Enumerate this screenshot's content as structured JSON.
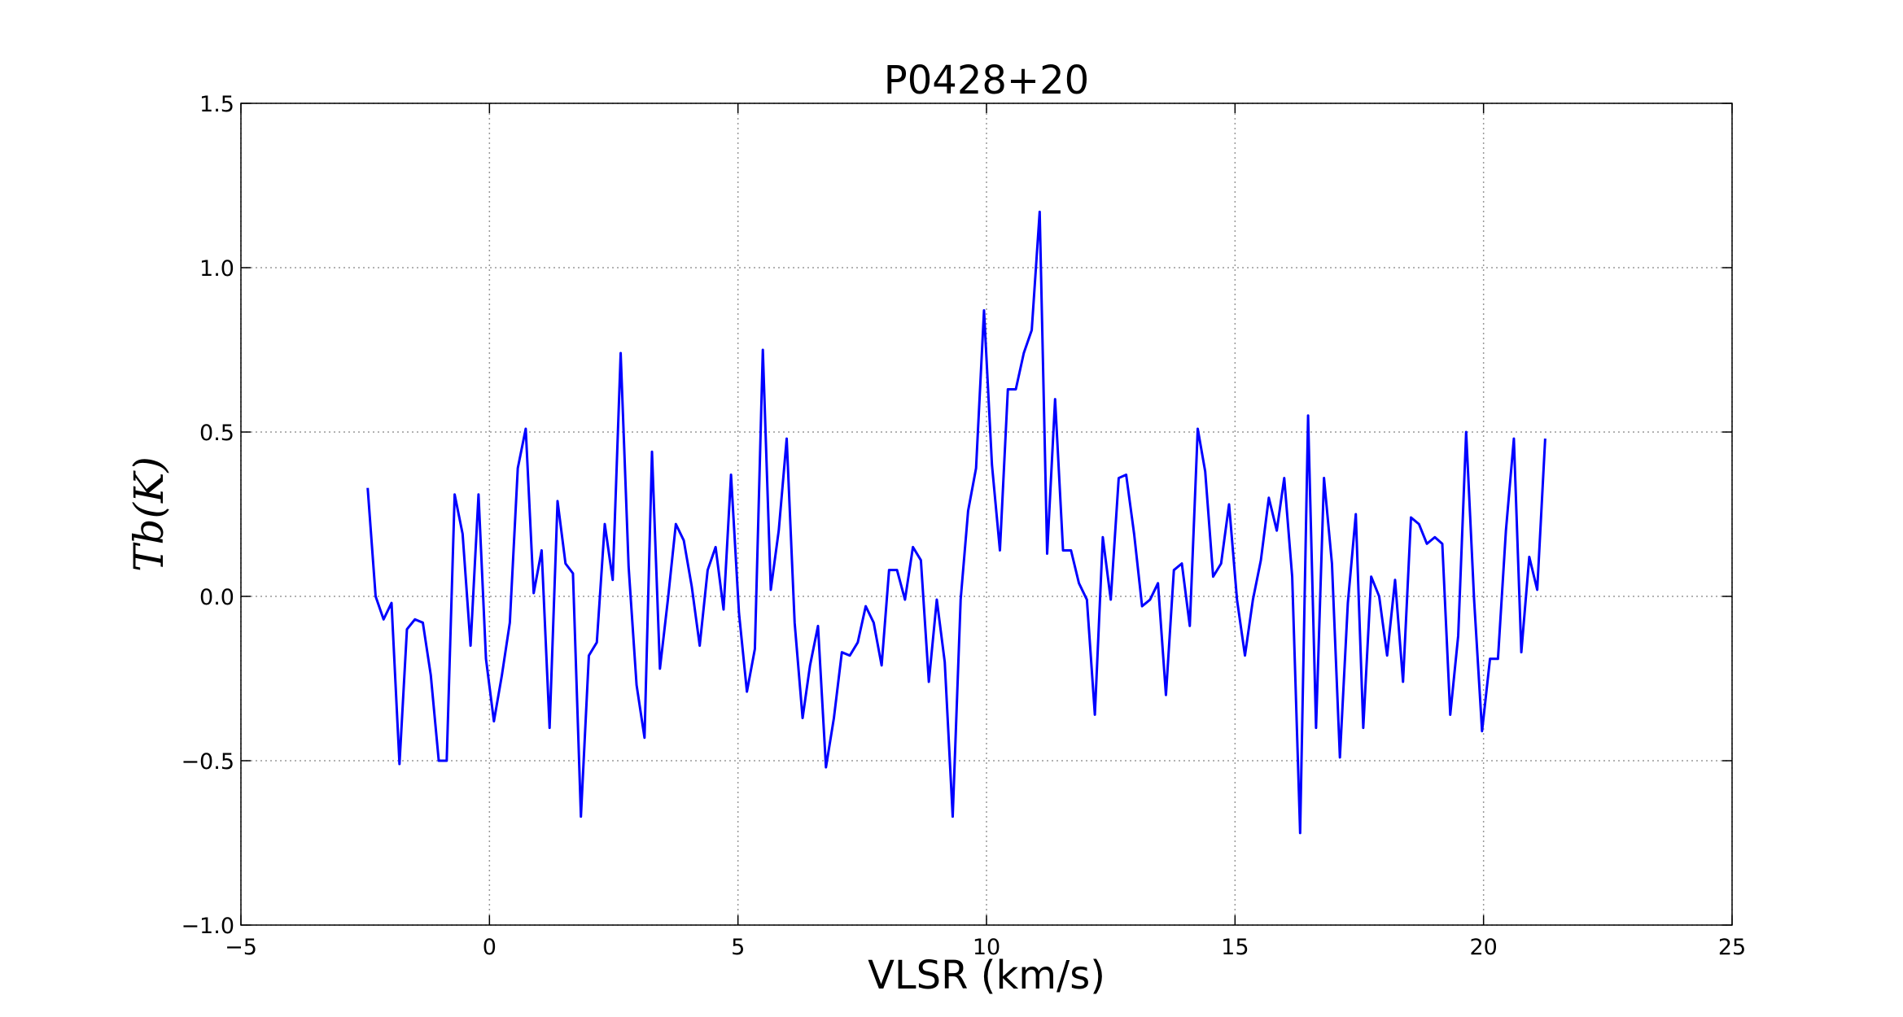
{
  "chart_data": {
    "type": "line",
    "title": "P0428+20",
    "xlabel": "VLSR (km/s)",
    "ylabel": "Tb(K)",
    "xlim": [
      -5,
      25
    ],
    "ylim": [
      -1.0,
      1.5
    ],
    "xticks": [
      {
        "value": -5,
        "label": "−5"
      },
      0,
      5,
      10,
      15,
      20,
      25
    ],
    "yticks": [
      {
        "value": -1.0,
        "label": "−1.0"
      },
      {
        "value": -0.5,
        "label": "−0.5"
      },
      {
        "value": 0.0,
        "label": "0.0"
      },
      {
        "value": 0.5,
        "label": "0.5"
      },
      {
        "value": 1.0,
        "label": "1.0"
      },
      {
        "value": 1.5,
        "label": "1.5"
      }
    ],
    "grid": true,
    "x": [
      -2.45,
      -2.29,
      -2.13,
      -1.97,
      -1.81,
      -1.66,
      -1.5,
      -1.34,
      -1.18,
      -1.02,
      -0.86,
      -0.7,
      -0.54,
      -0.38,
      -0.22,
      -0.07,
      0.09,
      0.25,
      0.41,
      0.57,
      0.73,
      0.89,
      1.05,
      1.21,
      1.37,
      1.53,
      1.68,
      1.84,
      2.0,
      2.16,
      2.32,
      2.48,
      2.64,
      2.8,
      2.96,
      3.12,
      3.27,
      3.43,
      3.59,
      3.75,
      3.91,
      4.07,
      4.23,
      4.39,
      4.55,
      4.71,
      4.86,
      5.02,
      5.18,
      5.34,
      5.5,
      5.66,
      5.82,
      5.98,
      6.14,
      6.3,
      6.45,
      6.61,
      6.77,
      6.93,
      7.09,
      7.25,
      7.41,
      7.57,
      7.73,
      7.89,
      8.04,
      8.2,
      8.36,
      8.52,
      8.68,
      8.84,
      9.0,
      9.16,
      9.32,
      9.48,
      9.63,
      9.79,
      9.95,
      10.11,
      10.27,
      10.43,
      10.59,
      10.75,
      10.91,
      11.07,
      11.22,
      11.38,
      11.54,
      11.7,
      11.86,
      12.02,
      12.18,
      12.34,
      12.5,
      12.66,
      12.81,
      12.97,
      13.13,
      13.29,
      13.45,
      13.61,
      13.77,
      13.93,
      14.09,
      14.25,
      14.4,
      14.56,
      14.72,
      14.88,
      15.04,
      15.2,
      15.36,
      15.52,
      15.68,
      15.84,
      15.99,
      16.15,
      16.31,
      16.47,
      16.63,
      16.79,
      16.95,
      17.11,
      17.27,
      17.43,
      17.58,
      17.74,
      17.9,
      18.06,
      18.22,
      18.38,
      18.54,
      18.7,
      18.86,
      19.02,
      19.17,
      19.33,
      19.49,
      19.65,
      19.81,
      19.97,
      20.13,
      20.29,
      20.45,
      20.61,
      20.76,
      20.92,
      21.08,
      21.24
    ],
    "series": [
      {
        "name": "Tb",
        "color": "#0000ff",
        "values": [
          0.33,
          0.0,
          -0.07,
          -0.02,
          -0.51,
          -0.1,
          -0.07,
          -0.08,
          -0.24,
          -0.5,
          -0.5,
          0.31,
          0.19,
          -0.15,
          0.31,
          -0.19,
          -0.38,
          -0.24,
          -0.08,
          0.39,
          0.51,
          0.01,
          0.14,
          -0.4,
          0.29,
          0.1,
          0.07,
          -0.67,
          -0.18,
          -0.14,
          0.22,
          0.05,
          0.74,
          0.09,
          -0.27,
          -0.43,
          0.44,
          -0.22,
          -0.01,
          0.22,
          0.17,
          0.03,
          -0.15,
          0.08,
          0.15,
          -0.04,
          0.37,
          -0.05,
          -0.29,
          -0.16,
          0.75,
          0.02,
          0.2,
          0.48,
          -0.08,
          -0.37,
          -0.21,
          -0.09,
          -0.52,
          -0.37,
          -0.17,
          -0.18,
          -0.14,
          -0.03,
          -0.08,
          -0.21,
          0.08,
          0.08,
          -0.01,
          0.15,
          0.11,
          -0.26,
          -0.01,
          -0.2,
          -0.67,
          -0.01,
          0.26,
          0.39,
          0.87,
          0.4,
          0.14,
          0.63,
          0.63,
          0.74,
          0.81,
          1.17,
          0.13,
          0.6,
          0.14,
          0.14,
          0.04,
          -0.01,
          -0.36,
          0.18,
          -0.01,
          0.36,
          0.37,
          0.19,
          -0.03,
          -0.01,
          0.04,
          -0.3,
          0.08,
          0.1,
          -0.09,
          0.51,
          0.38,
          0.06,
          0.1,
          0.28,
          -0.01,
          -0.18,
          -0.01,
          0.11,
          0.3,
          0.2,
          0.36,
          0.06,
          -0.72,
          0.55,
          -0.4,
          0.36,
          0.1,
          -0.49,
          -0.02,
          0.25,
          -0.4,
          0.06,
          0.0,
          -0.18,
          0.05,
          -0.26,
          0.24,
          0.22,
          0.16,
          0.18,
          0.16,
          -0.36,
          -0.12,
          0.5,
          -0.01,
          -0.41,
          -0.19,
          -0.19,
          0.2,
          0.48,
          -0.17,
          0.12,
          0.02,
          0.48
        ]
      }
    ]
  }
}
